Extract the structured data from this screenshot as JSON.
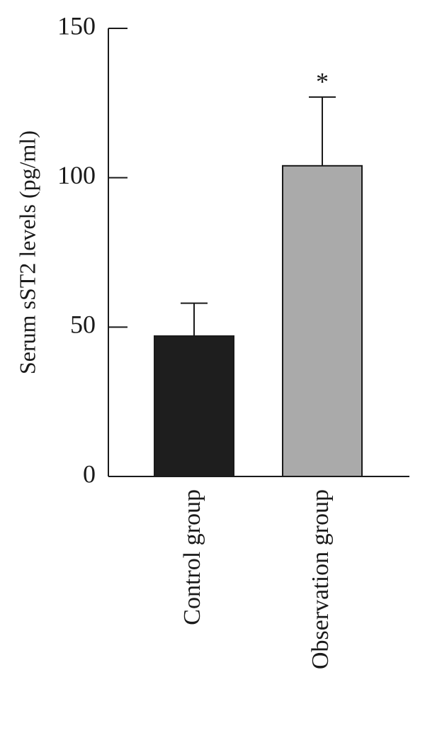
{
  "chart_data": {
    "type": "bar",
    "y_label": "Serum sST2 levels (pg/ml)",
    "categories": [
      "Control group",
      "Observation group"
    ],
    "values": [
      47,
      104
    ],
    "errors": [
      11,
      23
    ],
    "colors": [
      "#1e1e1e",
      "#aaaaaa"
    ],
    "annotation": "*",
    "ylim": [
      0,
      150
    ],
    "yticks": [
      0,
      50,
      100,
      150
    ],
    "grid": false
  }
}
